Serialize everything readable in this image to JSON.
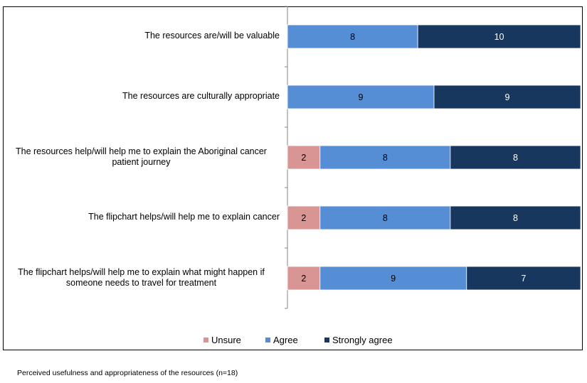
{
  "chart_data": {
    "type": "bar",
    "orientation": "horizontal",
    "stacked": true,
    "categories": [
      "The resources are/will be valuable",
      "The resources are culturally appropriate",
      "The resources help/will help me to explain the Aboriginal cancer patient journey",
      "The flipchart helps/will help me to explain cancer",
      "The flipchart helps/will help me to explain what might happen if someone needs to travel for treatment"
    ],
    "category_lines": [
      [
        "The resources are/will be valuable"
      ],
      [
        "The resources are culturally appropriate"
      ],
      [
        "The resources help/will help me to explain the Aboriginal cancer",
        "patient journey"
      ],
      [
        "The flipchart helps/will help me to explain cancer"
      ],
      [
        "The flipchart helps/will help me to explain what might happen if",
        "someone needs to travel for treatment"
      ]
    ],
    "series": [
      {
        "name": "Unsure",
        "color": "#d99594",
        "label_color": "#000000",
        "values": [
          0,
          0,
          2,
          2,
          2
        ]
      },
      {
        "name": "Agree",
        "color": "#558ed5",
        "label_color": "#000000",
        "values": [
          8,
          9,
          8,
          8,
          9
        ]
      },
      {
        "name": "Strongly agree",
        "color": "#17375e",
        "label_color": "#ffffff",
        "values": [
          10,
          9,
          8,
          8,
          7
        ]
      }
    ],
    "xlim": [
      0,
      18
    ],
    "total_n": 18,
    "x_axis_visible": false,
    "grid": false,
    "legend_position": "bottom",
    "title": "",
    "xlabel": "",
    "ylabel": "",
    "caption": "Perceived usefulness and appropriateness of the resources (n=18)"
  }
}
